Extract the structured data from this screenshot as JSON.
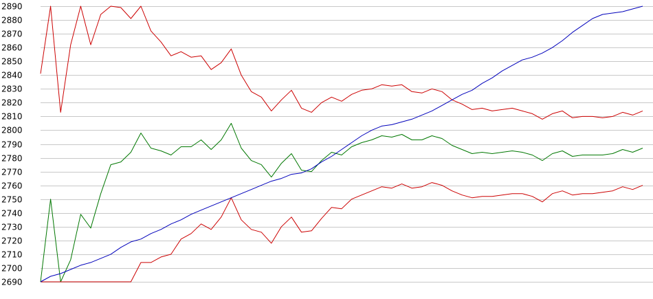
{
  "chart_data": {
    "type": "line",
    "title": "",
    "xlabel": "",
    "ylabel": "",
    "ylim": [
      2690,
      2890
    ],
    "yticks": [
      2690,
      2700,
      2710,
      2720,
      2730,
      2740,
      2750,
      2760,
      2770,
      2780,
      2790,
      2800,
      2810,
      2820,
      2830,
      2840,
      2850,
      2860,
      2870,
      2880,
      2890
    ],
    "x": [
      0,
      1,
      2,
      3,
      4,
      5,
      6,
      7,
      8,
      9,
      10,
      11,
      12,
      13,
      14,
      15,
      16,
      17,
      18,
      19,
      20,
      21,
      22,
      23,
      24,
      25,
      26,
      27,
      28,
      29,
      30,
      31,
      32,
      33,
      34,
      35,
      36,
      37,
      38,
      39,
      40,
      41,
      42,
      43,
      44,
      45,
      46,
      47,
      48,
      49,
      50,
      51,
      52,
      53,
      54,
      55,
      56,
      57,
      58,
      59,
      60
    ],
    "xlim": [
      0,
      60
    ],
    "grid": "horizontal",
    "legend": "none",
    "series": [
      {
        "color": "#cc0000",
        "values": [
          2841,
          2890,
          2813,
          2862,
          2890,
          2862,
          2884,
          2890,
          2889,
          2881,
          2890,
          2872,
          2864,
          2854,
          2857,
          2853,
          2854,
          2844,
          2849,
          2859,
          2840,
          2828,
          2824,
          2814,
          2822,
          2829,
          2816,
          2813,
          2820,
          2824,
          2821,
          2826,
          2829,
          2830,
          2833,
          2832,
          2833,
          2828,
          2827,
          2830,
          2828,
          2822,
          2819,
          2815,
          2816,
          2814,
          2815,
          2816,
          2814,
          2812,
          2808,
          2812,
          2814,
          2809,
          2810,
          2810,
          2809,
          2810,
          2813,
          2811,
          2814
        ]
      },
      {
        "color": "#007700",
        "values": [
          2690,
          2750,
          2690,
          2706,
          2739,
          2729,
          2754,
          2775,
          2777,
          2784,
          2798,
          2787,
          2785,
          2782,
          2788,
          2788,
          2793,
          2786,
          2793,
          2805,
          2787,
          2778,
          2775,
          2766,
          2776,
          2783,
          2771,
          2770,
          2778,
          2784,
          2782,
          2788,
          2791,
          2793,
          2796,
          2795,
          2797,
          2793,
          2793,
          2796,
          2794,
          2789,
          2786,
          2783,
          2784,
          2783,
          2784,
          2785,
          2784,
          2782,
          2778,
          2783,
          2785,
          2781,
          2782,
          2782,
          2782,
          2783,
          2786,
          2784,
          2787
        ]
      },
      {
        "color": "#cc0000",
        "values": [
          2690,
          2690,
          2690,
          2690,
          2690,
          2690,
          2690,
          2690,
          2690,
          2690,
          2704,
          2704,
          2708,
          2710,
          2721,
          2725,
          2732,
          2728,
          2737,
          2751,
          2735,
          2728,
          2726,
          2718,
          2730,
          2737,
          2726,
          2727,
          2736,
          2744,
          2743,
          2750,
          2753,
          2756,
          2759,
          2758,
          2761,
          2758,
          2759,
          2762,
          2760,
          2756,
          2753,
          2751,
          2752,
          2752,
          2753,
          2754,
          2754,
          2752,
          2748,
          2754,
          2756,
          2753,
          2754,
          2754,
          2755,
          2756,
          2759,
          2757,
          2760
        ]
      },
      {
        "color": "#0000bb",
        "values": [
          2690,
          2694,
          2696,
          2699,
          2702,
          2704,
          2707,
          2710,
          2715,
          2719,
          2721,
          2725,
          2728,
          2732,
          2735,
          2739,
          2742,
          2745,
          2748,
          2751,
          2754,
          2757,
          2760,
          2763,
          2765,
          2768,
          2769,
          2772,
          2777,
          2781,
          2786,
          2791,
          2796,
          2800,
          2803,
          2804,
          2806,
          2808,
          2811,
          2814,
          2818,
          2822,
          2826,
          2829,
          2834,
          2838,
          2843,
          2847,
          2851,
          2853,
          2856,
          2860,
          2865,
          2871,
          2876,
          2881,
          2884,
          2885,
          2886,
          2888,
          2890
        ]
      }
    ]
  }
}
